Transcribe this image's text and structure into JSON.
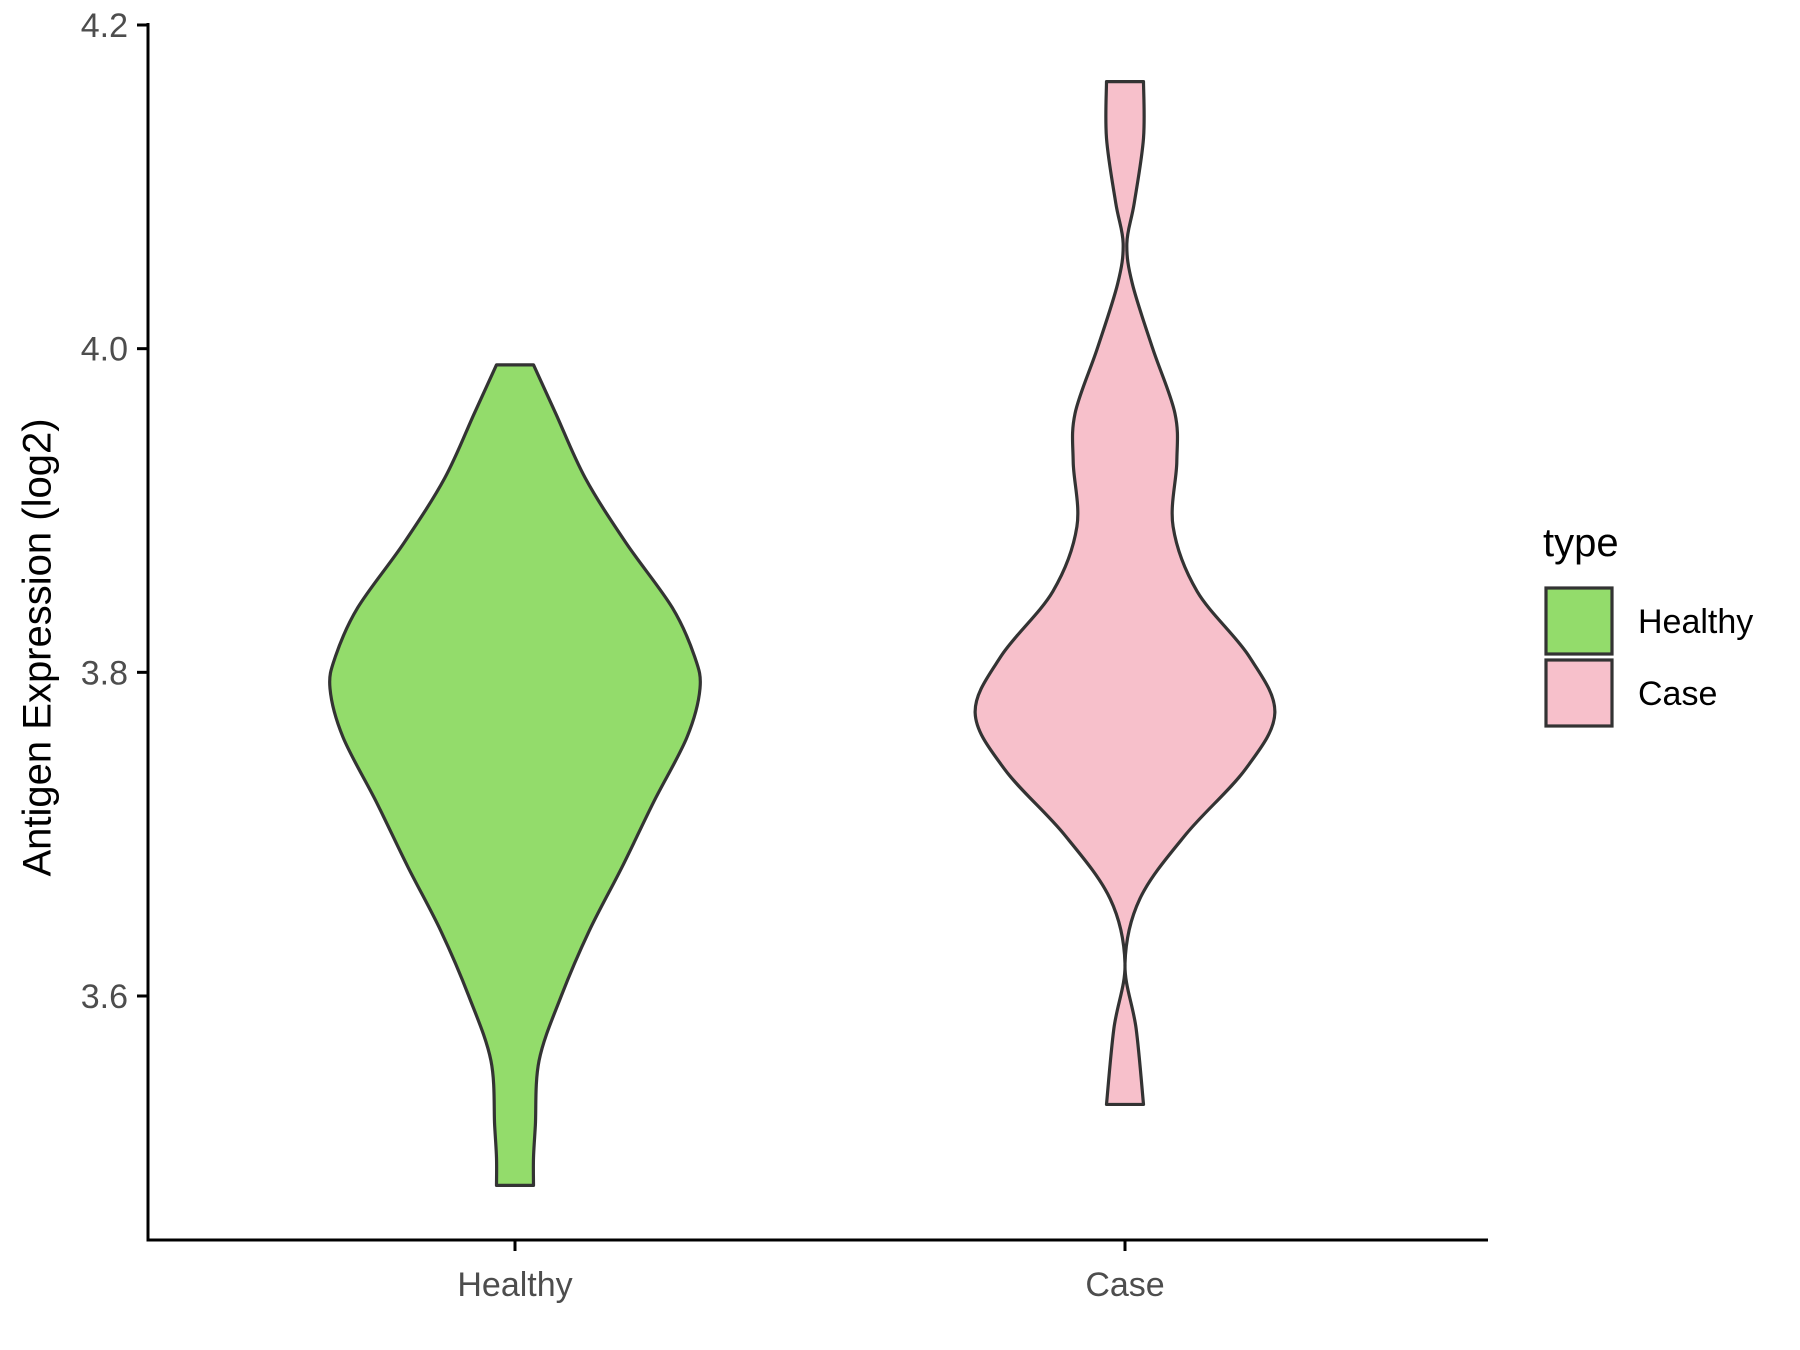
{
  "chart_data": {
    "type": "violin",
    "xlabel": "",
    "ylabel": "Antigen Expression (log2)",
    "ylim": [
      3.46,
      4.2
    ],
    "yticks": [
      "3.6",
      "3.8",
      "4.0",
      "4.2"
    ],
    "categories": [
      "Healthy",
      "Case"
    ],
    "legend": {
      "title": "type",
      "position": "right",
      "items": [
        {
          "label": "Healthy",
          "color": "#93DC6B"
        },
        {
          "label": "Case",
          "color": "#F7C0CB"
        }
      ]
    },
    "grid": false,
    "series": [
      {
        "category": "Healthy",
        "color": "#93DC6B",
        "min": 3.483,
        "max": 3.99,
        "density_profile": [
          [
            3.99,
            0.1
          ],
          [
            3.96,
            0.22
          ],
          [
            3.92,
            0.38
          ],
          [
            3.88,
            0.6
          ],
          [
            3.84,
            0.85
          ],
          [
            3.81,
            0.97
          ],
          [
            3.79,
            1.0
          ],
          [
            3.76,
            0.93
          ],
          [
            3.72,
            0.75
          ],
          [
            3.68,
            0.58
          ],
          [
            3.64,
            0.4
          ],
          [
            3.6,
            0.25
          ],
          [
            3.56,
            0.13
          ],
          [
            3.52,
            0.11
          ],
          [
            3.5,
            0.1
          ],
          [
            3.483,
            0.1
          ]
        ]
      },
      {
        "category": "Case",
        "color": "#F7C0CB",
        "min": 3.533,
        "max": 4.165,
        "density_profile": [
          [
            4.165,
            0.1
          ],
          [
            4.13,
            0.1
          ],
          [
            4.09,
            0.05
          ],
          [
            4.065,
            0.01
          ],
          [
            4.04,
            0.04
          ],
          [
            4.0,
            0.15
          ],
          [
            3.96,
            0.27
          ],
          [
            3.93,
            0.28
          ],
          [
            3.89,
            0.26
          ],
          [
            3.85,
            0.39
          ],
          [
            3.81,
            0.67
          ],
          [
            3.775,
            0.81
          ],
          [
            3.74,
            0.65
          ],
          [
            3.7,
            0.33
          ],
          [
            3.66,
            0.08
          ],
          [
            3.62,
            0.0
          ],
          [
            3.58,
            0.06
          ],
          [
            3.533,
            0.1
          ]
        ]
      }
    ]
  }
}
